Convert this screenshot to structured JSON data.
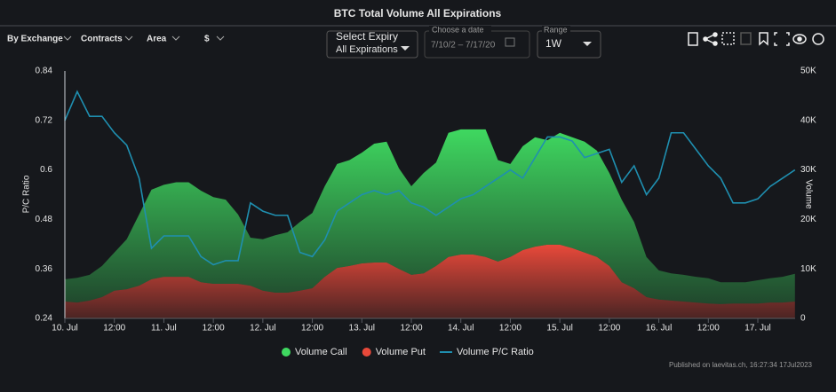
{
  "filters": [
    "By Exchange",
    "Contracts",
    "Area",
    "$"
  ],
  "expiry": {
    "label": "Select Expiry",
    "value": "All Expirations"
  },
  "date": {
    "label": "Choose a date",
    "value": "7/10/2 – 7/17/20"
  },
  "range": {
    "label": "Range",
    "value": "1W"
  },
  "credit": "Published on laevitas.ch, 16:27:34 17Jul2023",
  "chart_data": {
    "type": "area",
    "title": "BTC Total Volume All Expirations",
    "y_label": "P/C Ratio",
    "y2_label": "Volume",
    "stacked": true,
    "categories": [
      "10. Jul",
      null,
      null,
      null,
      "12:00",
      null,
      null,
      null,
      "11. Jul",
      null,
      null,
      null,
      "12:00",
      null,
      null,
      null,
      "12. Jul",
      null,
      null,
      null,
      "12:00",
      null,
      null,
      null,
      "13. Jul",
      null,
      null,
      null,
      "12:00",
      null,
      null,
      null,
      "14. Jul",
      null,
      null,
      null,
      "12:00",
      null,
      null,
      null,
      "15. Jul",
      null,
      null,
      null,
      "12:00",
      null,
      null,
      null,
      "16. Jul",
      null,
      null,
      null,
      "12:00",
      null,
      null,
      null,
      "17. Jul",
      null,
      null,
      null
    ],
    "ylim": [
      0.24,
      0.84
    ],
    "yticks": [
      0.24,
      0.36,
      0.48,
      0.6,
      0.72,
      0.84
    ],
    "y2lim": [
      0,
      50000
    ],
    "y2ticks": [
      0,
      {
        "value": 10000,
        "label": "10K"
      },
      {
        "value": 20000,
        "label": "20K"
      },
      {
        "value": 30000,
        "label": "30K"
      },
      {
        "value": 40000,
        "label": "40K"
      },
      {
        "value": 50000,
        "label": "50K"
      }
    ],
    "grid": false,
    "legend": "bottom",
    "series": [
      {
        "name": "Volume Call",
        "type": "area",
        "axis": "y2",
        "color": "#3fd860",
        "values": [
          4500,
          5000,
          5200,
          6300,
          7700,
          10100,
          14400,
          18100,
          18600,
          19100,
          19100,
          18500,
          17500,
          17000,
          14000,
          9700,
          10400,
          11600,
          12200,
          13900,
          15200,
          18300,
          21000,
          21400,
          22400,
          24000,
          24400,
          20300,
          17900,
          20300,
          20900,
          25100,
          25300,
          25300,
          25800,
          20500,
          18800,
          21000,
          22100,
          21100,
          22600,
          22400,
          22400,
          21500,
          18800,
          16700,
          13400,
          8100,
          5900,
          5500,
          5400,
          5200,
          5100,
          4400,
          4300,
          4300,
          4700,
          4900,
          5200,
          5600
        ]
      },
      {
        "name": "Volume Put",
        "type": "area",
        "axis": "y2",
        "color": "#e8493a",
        "values": [
          3400,
          3200,
          3600,
          4300,
          5600,
          5900,
          6600,
          7900,
          8400,
          8400,
          8400,
          7300,
          7000,
          7000,
          7000,
          6600,
          5600,
          5200,
          5200,
          5600,
          6100,
          8400,
          10200,
          10600,
          11100,
          11300,
          11300,
          10000,
          8800,
          9100,
          10600,
          12400,
          12900,
          12900,
          12400,
          11500,
          12400,
          13800,
          14500,
          14900,
          14900,
          14200,
          13300,
          12400,
          10600,
          7300,
          6100,
          4300,
          3800,
          3600,
          3400,
          3200,
          3000,
          2900,
          3000,
          3000,
          3000,
          3200,
          3200,
          3400
        ]
      },
      {
        "name": "Volume P/C Ratio",
        "type": "line",
        "color": "#1f8fb0",
        "values": [
          0.72,
          0.79,
          0.73,
          0.73,
          0.69,
          0.66,
          0.58,
          0.41,
          0.44,
          0.44,
          0.44,
          0.39,
          0.37,
          0.38,
          0.38,
          0.52,
          0.5,
          0.49,
          0.49,
          0.4,
          0.39,
          0.43,
          0.5,
          0.52,
          0.54,
          0.55,
          0.54,
          0.55,
          0.52,
          0.51,
          0.49,
          0.51,
          0.53,
          0.54,
          0.56,
          0.58,
          0.6,
          0.58,
          0.63,
          0.68,
          0.68,
          0.67,
          0.63,
          0.64,
          0.65,
          0.57,
          0.61,
          0.54,
          0.58,
          0.69,
          0.69,
          0.65,
          0.61,
          0.58,
          0.52,
          0.52,
          0.53,
          0.56,
          0.58,
          0.6
        ]
      }
    ]
  }
}
